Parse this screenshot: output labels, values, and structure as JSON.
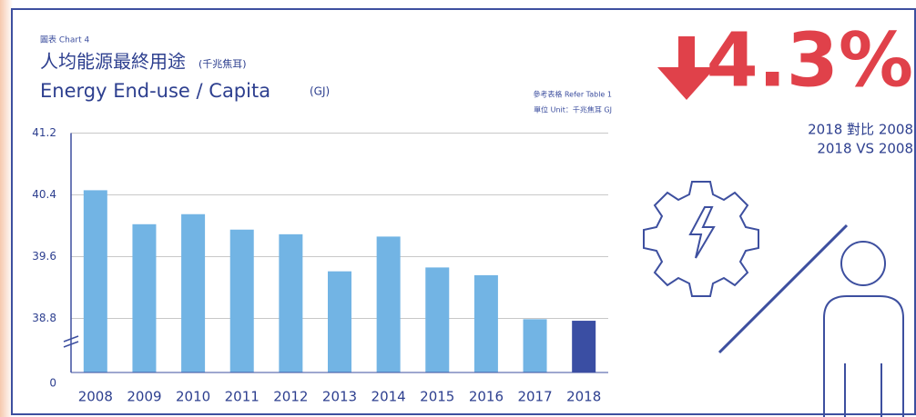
{
  "chart_data": {
    "type": "bar",
    "label": "圖表 Chart 4",
    "title": "人均能源最終用途",
    "title_unit": "(千兆焦耳)",
    "subtitle": "Energy End-use / Capita",
    "subtitle_unit": "(GJ)",
    "notes": [
      "參考表格 Refer Table 1",
      "單位 Unit：千兆焦耳 GJ"
    ],
    "categories": [
      "2008",
      "2009",
      "2010",
      "2011",
      "2012",
      "2013",
      "2014",
      "2015",
      "2016",
      "2017",
      "2018"
    ],
    "values": [
      40.46,
      40.02,
      40.15,
      39.95,
      39.89,
      39.41,
      39.86,
      39.46,
      39.36,
      38.79,
      38.77
    ],
    "colors": [
      "#72b4e4",
      "#72b4e4",
      "#72b4e4",
      "#72b4e4",
      "#72b4e4",
      "#72b4e4",
      "#72b4e4",
      "#72b4e4",
      "#72b4e4",
      "#72b4e4",
      "#3a4ea3"
    ],
    "ylim": [
      38.1,
      41.2
    ],
    "yticks": [
      0,
      38.8,
      39.6,
      40.4,
      41.2
    ],
    "axis_break": true,
    "grid": true
  },
  "callout": {
    "text": "4.3%",
    "caption": [
      "2018 對比 2008",
      "2018 VS 2008"
    ]
  }
}
